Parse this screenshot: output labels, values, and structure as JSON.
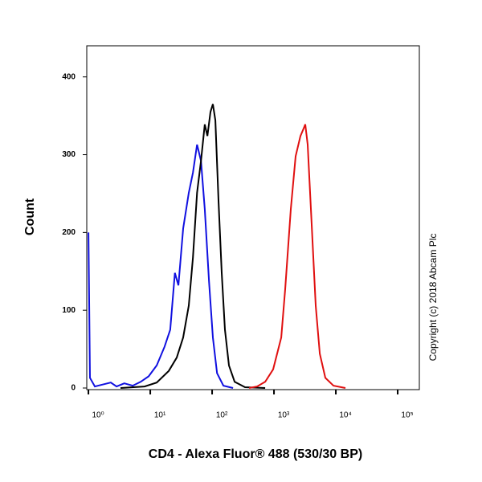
{
  "chart_data": {
    "type": "line",
    "x_label": "CD4 - Alexa Fluor® 488 (530/30 BP)",
    "y_label": "Count",
    "annotation": "Copyright (c) 2018 Abcam Plc",
    "xscale": "log",
    "xlim": [
      0.94,
      224000
    ],
    "xticks": [
      {
        "value": 1,
        "label": "10⁰"
      },
      {
        "value": 10,
        "label": "10¹"
      },
      {
        "value": 100,
        "label": "10²"
      },
      {
        "value": 1000,
        "label": "10³"
      },
      {
        "value": 10000,
        "label": "10⁴"
      },
      {
        "value": 100000,
        "label": "10⁵"
      }
    ],
    "ylim": [
      0,
      440
    ],
    "yticks": [
      0,
      100,
      200,
      300,
      400
    ],
    "series": [
      {
        "color": "#1010e0",
        "x": [
          1,
          1.06,
          1.27,
          2.3,
          2.85,
          3.8,
          5.2,
          7.0,
          9.4,
          12.7,
          17,
          21,
          25,
          28.5,
          34,
          42,
          49,
          57,
          66,
          76,
          89,
          103,
          120,
          152,
          218
        ],
        "values": [
          200,
          13,
          2,
          7,
          2,
          6,
          3,
          8,
          15,
          29,
          53,
          75,
          148,
          132,
          205,
          251,
          277,
          313,
          292,
          230,
          137,
          65,
          19,
          3,
          0
        ]
      },
      {
        "color": "#000000",
        "x": [
          3.3,
          8.1,
          12.7,
          19.9,
          26.8,
          34,
          42,
          49,
          57,
          66,
          76,
          84,
          94,
          103,
          113,
          127,
          143,
          161,
          187,
          231,
          340,
          720
        ],
        "values": [
          0,
          2,
          7,
          22,
          39,
          65,
          106,
          168,
          251,
          292,
          339,
          324,
          355,
          365,
          344,
          241,
          148,
          75,
          29,
          8,
          1,
          0
        ]
      },
      {
        "color": "#e01010",
        "x": [
          396,
          533,
          720,
          970,
          1310,
          1520,
          1870,
          2240,
          2680,
          3030,
          3210,
          3510,
          4070,
          4730,
          5500,
          6780,
          9150,
          14300
        ],
        "values": [
          0,
          2,
          8,
          24,
          65,
          127,
          230,
          298,
          324,
          334,
          339,
          313,
          210,
          106,
          44,
          13,
          3,
          0
        ]
      }
    ]
  }
}
